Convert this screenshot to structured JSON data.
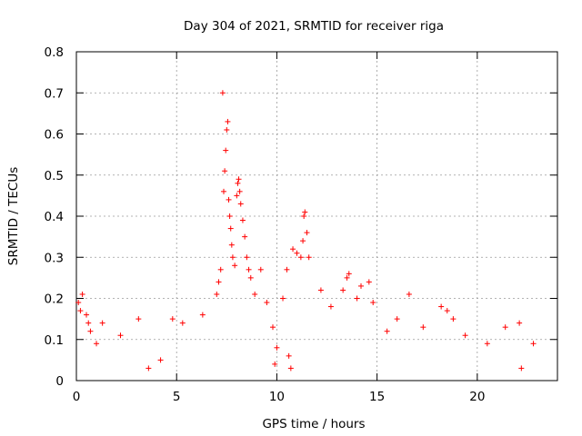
{
  "chart_data": {
    "type": "scatter",
    "title": "Day 304 of 2021, SRMTID for receiver riga",
    "xlabel": "GPS time / hours",
    "ylabel": "SRMTID / TECUs",
    "xlim": [
      0,
      24
    ],
    "ylim": [
      0,
      0.8
    ],
    "grid": true,
    "marker": "+",
    "marker_color": "#ff0000",
    "x_ticks": [
      0,
      5,
      10,
      15,
      20
    ],
    "x_tick_labels": [
      "0",
      "5",
      "10",
      "15",
      "20"
    ],
    "y_ticks": [
      0,
      0.1,
      0.2,
      0.3,
      0.4,
      0.5,
      0.6,
      0.7,
      0.8
    ],
    "y_tick_labels": [
      "0",
      "0.1",
      "0.2",
      "0.3",
      "0.4",
      "0.5",
      "0.6",
      "0.7",
      "0.8"
    ],
    "series": [
      {
        "name": "SRMTID",
        "points": [
          [
            0.1,
            0.19
          ],
          [
            0.2,
            0.17
          ],
          [
            0.3,
            0.21
          ],
          [
            0.5,
            0.16
          ],
          [
            0.6,
            0.14
          ],
          [
            0.7,
            0.12
          ],
          [
            1.0,
            0.09
          ],
          [
            1.3,
            0.14
          ],
          [
            2.2,
            0.11
          ],
          [
            3.1,
            0.15
          ],
          [
            3.6,
            0.03
          ],
          [
            4.2,
            0.05
          ],
          [
            4.8,
            0.15
          ],
          [
            5.3,
            0.14
          ],
          [
            6.3,
            0.16
          ],
          [
            7.0,
            0.21
          ],
          [
            7.1,
            0.24
          ],
          [
            7.2,
            0.27
          ],
          [
            7.3,
            0.7
          ],
          [
            7.35,
            0.46
          ],
          [
            7.4,
            0.51
          ],
          [
            7.45,
            0.56
          ],
          [
            7.5,
            0.61
          ],
          [
            7.55,
            0.63
          ],
          [
            7.6,
            0.44
          ],
          [
            7.65,
            0.4
          ],
          [
            7.7,
            0.37
          ],
          [
            7.75,
            0.33
          ],
          [
            7.8,
            0.3
          ],
          [
            7.9,
            0.28
          ],
          [
            8.0,
            0.45
          ],
          [
            8.05,
            0.48
          ],
          [
            8.1,
            0.49
          ],
          [
            8.15,
            0.46
          ],
          [
            8.2,
            0.43
          ],
          [
            8.3,
            0.39
          ],
          [
            8.4,
            0.35
          ],
          [
            8.5,
            0.3
          ],
          [
            8.6,
            0.27
          ],
          [
            8.7,
            0.25
          ],
          [
            8.9,
            0.21
          ],
          [
            9.2,
            0.27
          ],
          [
            9.5,
            0.19
          ],
          [
            9.8,
            0.13
          ],
          [
            9.9,
            0.04
          ],
          [
            10.0,
            0.08
          ],
          [
            10.3,
            0.2
          ],
          [
            10.5,
            0.27
          ],
          [
            10.8,
            0.32
          ],
          [
            11.0,
            0.31
          ],
          [
            11.2,
            0.3
          ],
          [
            11.3,
            0.34
          ],
          [
            11.35,
            0.4
          ],
          [
            11.4,
            0.41
          ],
          [
            11.5,
            0.36
          ],
          [
            11.6,
            0.3
          ],
          [
            10.6,
            0.06
          ],
          [
            10.7,
            0.03
          ],
          [
            12.2,
            0.22
          ],
          [
            12.7,
            0.18
          ],
          [
            13.3,
            0.22
          ],
          [
            13.5,
            0.25
          ],
          [
            13.6,
            0.26
          ],
          [
            14.0,
            0.2
          ],
          [
            14.2,
            0.23
          ],
          [
            14.6,
            0.24
          ],
          [
            14.8,
            0.19
          ],
          [
            15.5,
            0.12
          ],
          [
            16.0,
            0.15
          ],
          [
            16.6,
            0.21
          ],
          [
            17.3,
            0.13
          ],
          [
            18.2,
            0.18
          ],
          [
            18.5,
            0.17
          ],
          [
            18.8,
            0.15
          ],
          [
            19.4,
            0.11
          ],
          [
            20.5,
            0.09
          ],
          [
            21.4,
            0.13
          ],
          [
            22.1,
            0.14
          ],
          [
            22.2,
            0.03
          ],
          [
            22.8,
            0.09
          ]
        ]
      }
    ]
  }
}
